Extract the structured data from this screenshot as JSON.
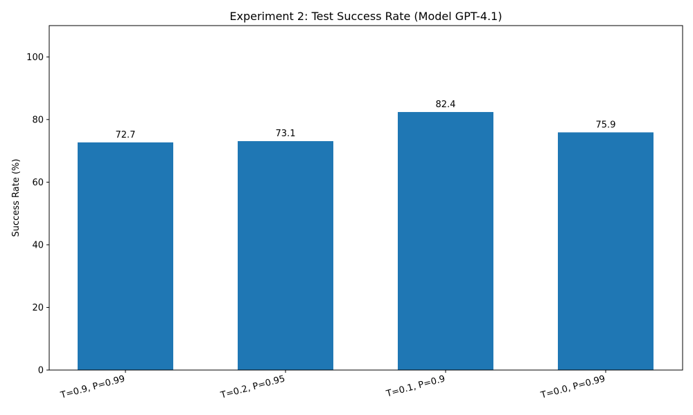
{
  "chart_data": {
    "type": "bar",
    "title": "Experiment 2: Test Success Rate (Model GPT-4.1)",
    "xlabel": "",
    "ylabel": "Success Rate (%)",
    "categories": [
      "T=0.9, P=0.99",
      "T=0.2, P=0.95",
      "T=0.1, P=0.9",
      "T=0.0, P=0.99"
    ],
    "values": [
      72.7,
      73.1,
      82.4,
      75.9
    ],
    "data_labels": [
      "72.7",
      "73.1",
      "82.4",
      "75.9"
    ],
    "ylim": [
      0,
      110
    ],
    "yticks": [
      0,
      20,
      40,
      60,
      80,
      100
    ],
    "ytick_labels": [
      "0",
      "20",
      "40",
      "60",
      "80",
      "100"
    ],
    "bar_color": "#1f77b4",
    "grid": false,
    "legend": "none"
  }
}
